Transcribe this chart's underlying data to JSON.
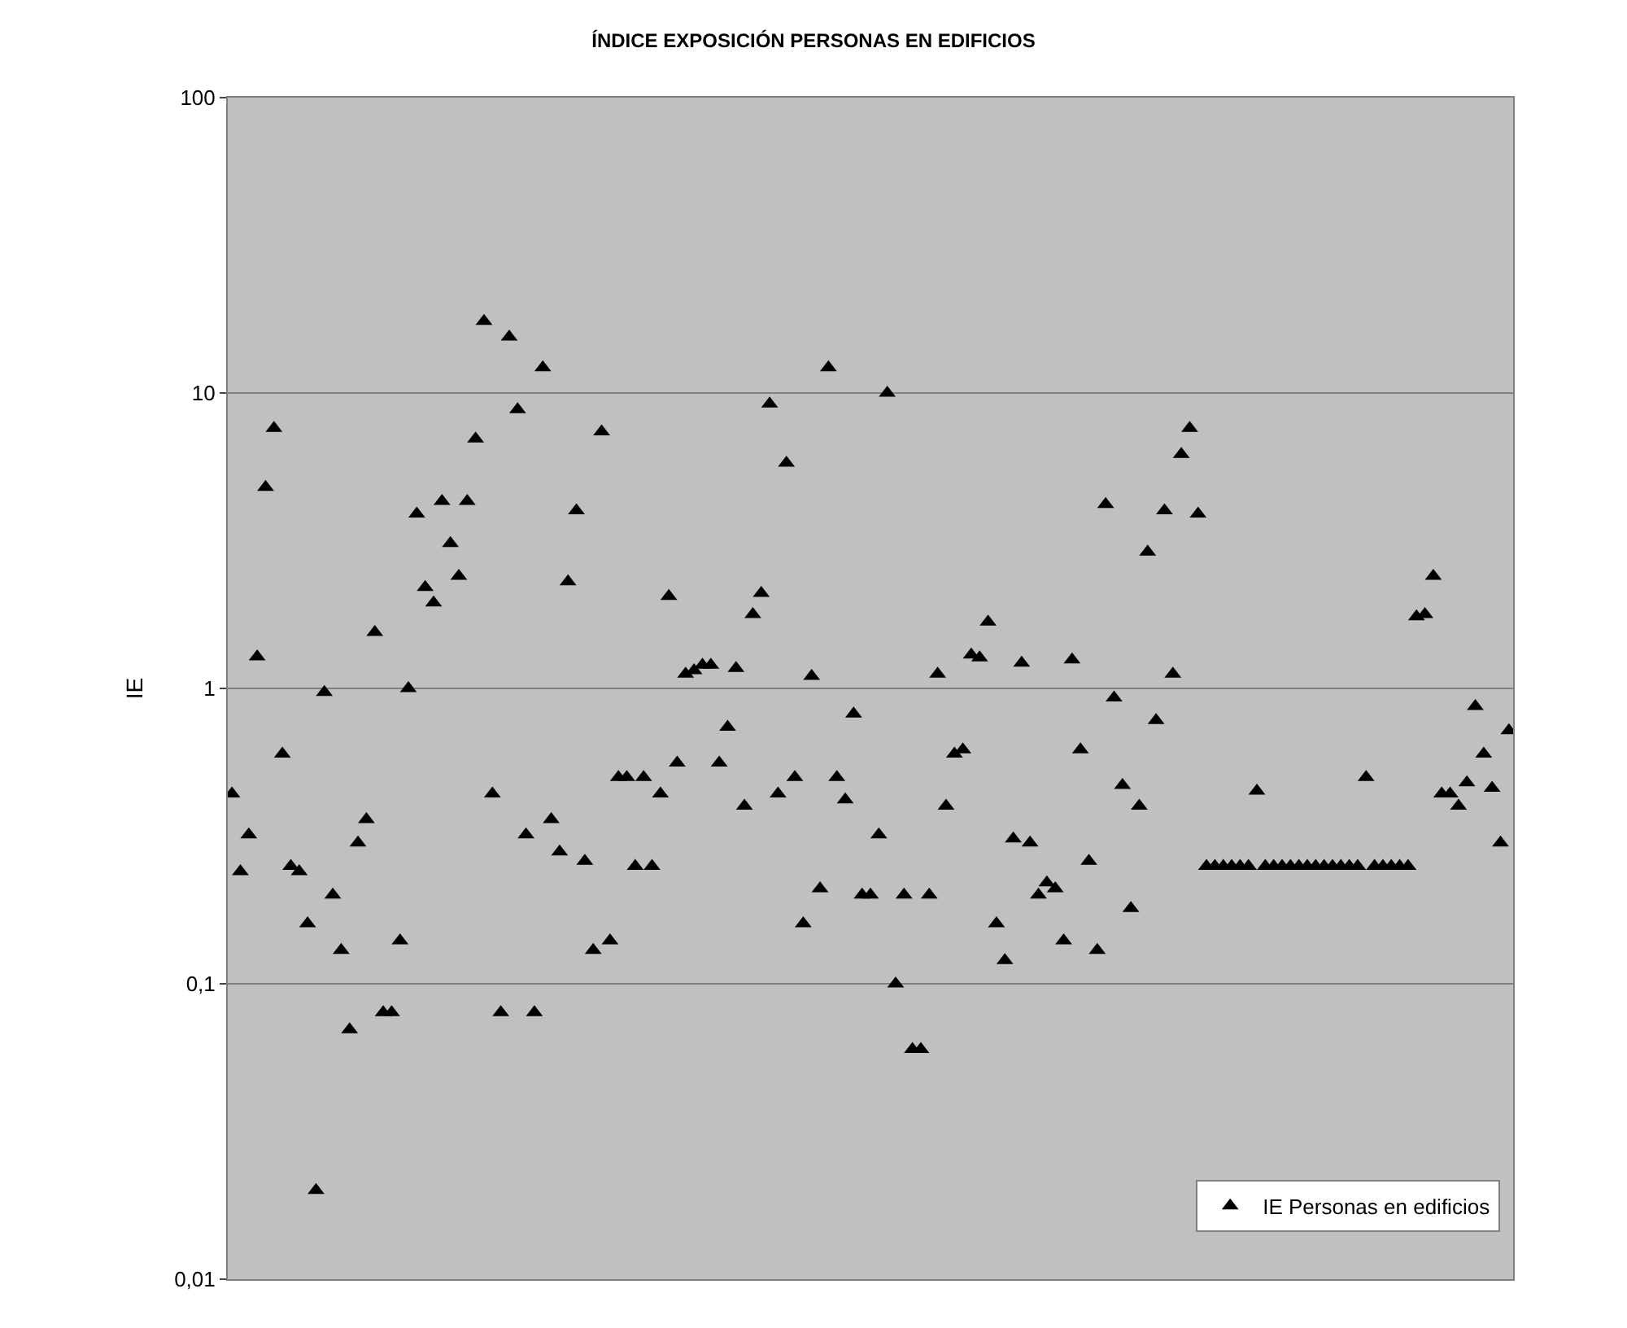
{
  "chart_data": {
    "type": "scatter",
    "title": "ÍNDICE EXPOSICIÓN PERSONAS EN EDIFICIOS",
    "ylabel": "IE",
    "log": true,
    "ylim": [
      0.01,
      100
    ],
    "yticks": [
      {
        "value": 0.01,
        "label": "0,01"
      },
      {
        "value": 0.1,
        "label": "0,1"
      },
      1,
      10,
      100
    ],
    "grid": "y",
    "legend": "bottom right",
    "marker": "triangle",
    "categories": [
      null,
      null,
      null,
      null,
      null,
      null,
      null,
      null,
      null,
      null,
      null,
      null,
      null,
      null,
      null,
      null,
      null,
      null,
      null,
      null,
      null,
      null,
      null,
      null,
      null,
      null,
      null,
      null,
      null,
      null,
      null,
      null,
      null,
      null,
      null,
      null,
      null,
      null,
      null,
      null,
      null,
      null,
      null,
      null,
      null,
      null,
      null,
      null,
      null,
      null,
      null,
      null,
      null,
      null,
      null,
      null,
      null,
      null,
      null,
      null,
      null,
      null,
      null,
      null,
      null,
      null,
      null,
      null,
      null,
      null,
      null,
      null,
      null,
      null,
      null,
      null,
      null,
      null,
      null,
      null,
      null,
      null,
      null,
      null,
      null,
      null,
      null,
      null,
      null,
      null,
      null,
      null,
      null,
      null,
      null,
      null,
      null,
      null,
      null,
      null,
      null,
      null,
      null,
      null,
      null,
      null,
      null,
      null,
      null,
      null,
      null,
      null,
      null,
      null,
      null,
      null,
      null,
      null,
      null,
      null,
      null,
      null,
      null,
      null,
      null,
      null,
      null,
      null,
      null,
      null,
      null,
      null,
      null,
      null,
      null,
      null,
      null,
      null,
      null,
      null,
      null,
      null,
      null,
      null,
      null,
      null,
      null,
      null,
      null,
      null,
      null,
      null,
      null
    ],
    "series": [
      {
        "name": "IE Personas en edificios",
        "color": "#000000",
        "values": [
          0.44,
          0.24,
          0.32,
          1.28,
          4.8,
          7.6,
          0.6,
          0.25,
          0.24,
          0.16,
          0.02,
          0.97,
          0.2,
          0.13,
          0.07,
          0.3,
          0.36,
          1.55,
          0.08,
          0.08,
          0.14,
          1.0,
          3.9,
          2.2,
          1.95,
          4.3,
          3.1,
          2.4,
          4.3,
          7.0,
          17.5,
          0.44,
          0.08,
          15.5,
          8.8,
          0.32,
          0.08,
          12.2,
          0.36,
          0.28,
          2.3,
          4.0,
          0.26,
          0.13,
          7.4,
          0.14,
          0.5,
          0.5,
          0.25,
          0.5,
          0.25,
          0.44,
          2.05,
          0.56,
          1.12,
          1.15,
          1.2,
          1.2,
          0.56,
          0.74,
          1.17,
          0.4,
          1.78,
          2.1,
          9.2,
          0.44,
          5.8,
          0.5,
          0.16,
          1.1,
          0.21,
          12.2,
          0.5,
          0.42,
          0.82,
          0.2,
          0.2,
          0.32,
          10,
          0.1,
          0.2,
          0.06,
          0.06,
          0.2,
          1.12,
          0.4,
          0.6,
          0.62,
          1.3,
          1.27,
          1.68,
          0.16,
          0.12,
          0.31,
          1.22,
          0.3,
          0.2,
          0.22,
          0.21,
          0.14,
          1.25,
          0.62,
          0.26,
          0.13,
          4.2,
          0.93,
          0.47,
          0.18,
          0.4,
          2.9,
          0.78,
          4.0,
          1.12,
          6.2,
          7.6,
          3.9,
          0.25,
          0.25,
          0.25,
          0.25,
          0.25,
          0.25,
          0.45,
          0.25,
          0.25,
          0.25,
          0.25,
          0.25,
          0.25,
          0.25,
          0.25,
          0.25,
          0.25,
          0.25,
          0.25,
          0.5,
          0.25,
          0.25,
          0.25,
          0.25,
          0.25,
          1.75,
          1.78,
          2.4,
          0.44,
          0.44,
          0.4,
          0.48,
          0.87,
          0.6,
          0.46,
          0.3,
          0.72
        ]
      }
    ]
  }
}
